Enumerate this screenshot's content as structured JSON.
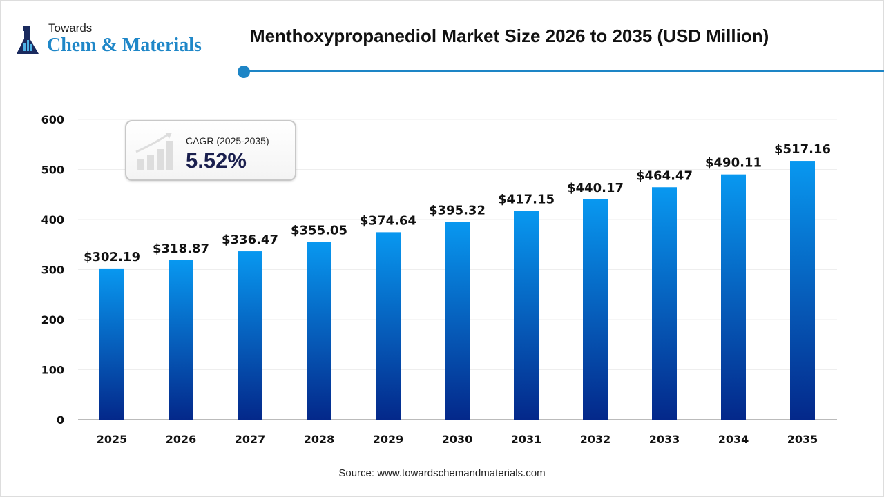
{
  "logo": {
    "top": "Towards",
    "main": "Chem & Materials"
  },
  "header": {
    "title": "Menthoxypropanediol Market Size 2026 to 2035  (USD Million)"
  },
  "cagr": {
    "label": "CAGR (2025-2035)",
    "value": "5.52%"
  },
  "source": "Source: www.towardschemandmaterials.com",
  "colors": {
    "bar_top": "#0898f0",
    "bar_bottom": "#04288a",
    "accent": "#1d85c6"
  },
  "chart_data": {
    "type": "bar",
    "title": "Menthoxypropanediol Market Size 2026 to 2035  (USD Million)",
    "categories": [
      "2025",
      "2026",
      "2027",
      "2028",
      "2029",
      "2030",
      "2031",
      "2032",
      "2033",
      "2034",
      "2035"
    ],
    "values": [
      302.19,
      318.87,
      336.47,
      355.05,
      374.64,
      395.32,
      417.15,
      440.17,
      464.47,
      490.11,
      517.16
    ],
    "data_labels": [
      "$302.19",
      "$318.87",
      "$336.47",
      "$355.05",
      "$374.64",
      "$395.32",
      "$417.15",
      "$440.17",
      "$464.47",
      "$490.11",
      "$517.16"
    ],
    "yticks": [
      0,
      100,
      200,
      300,
      400,
      500,
      600
    ],
    "ylim": [
      0,
      600
    ],
    "grid": true,
    "xlabel": "",
    "ylabel": ""
  }
}
